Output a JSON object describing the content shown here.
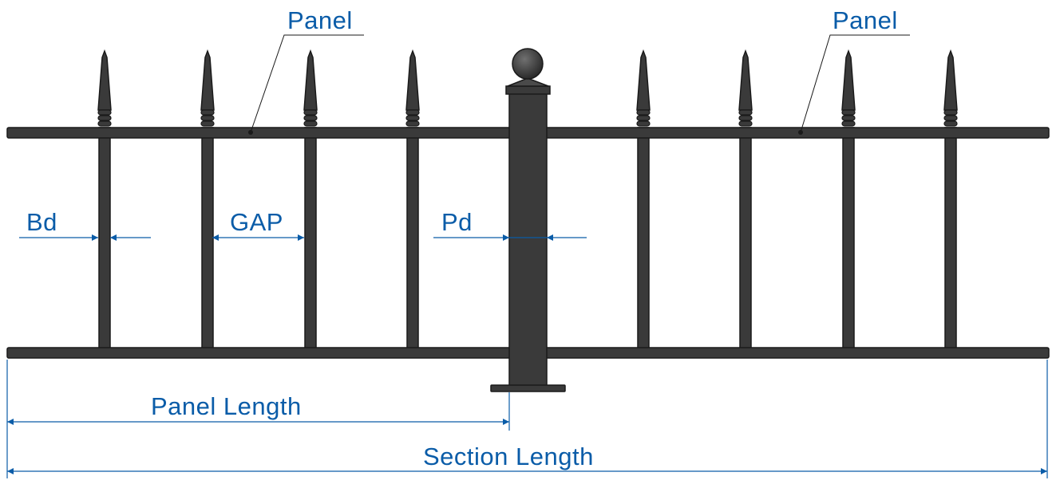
{
  "colors": {
    "metal_fill": "#3a3a3a",
    "metal_stroke": "#1a1a1a",
    "dimension": "#0a5ca8",
    "background": "#ffffff"
  },
  "labels": {
    "panel_left": "Panel",
    "panel_right": "Panel",
    "bar_diameter": "Bd",
    "gap": "GAP",
    "post_diameter": "Pd",
    "panel_length": "Panel Length",
    "section_length": "Section Length"
  },
  "counts": {
    "pickets_left_panel": 4,
    "pickets_right_panel": 4
  }
}
